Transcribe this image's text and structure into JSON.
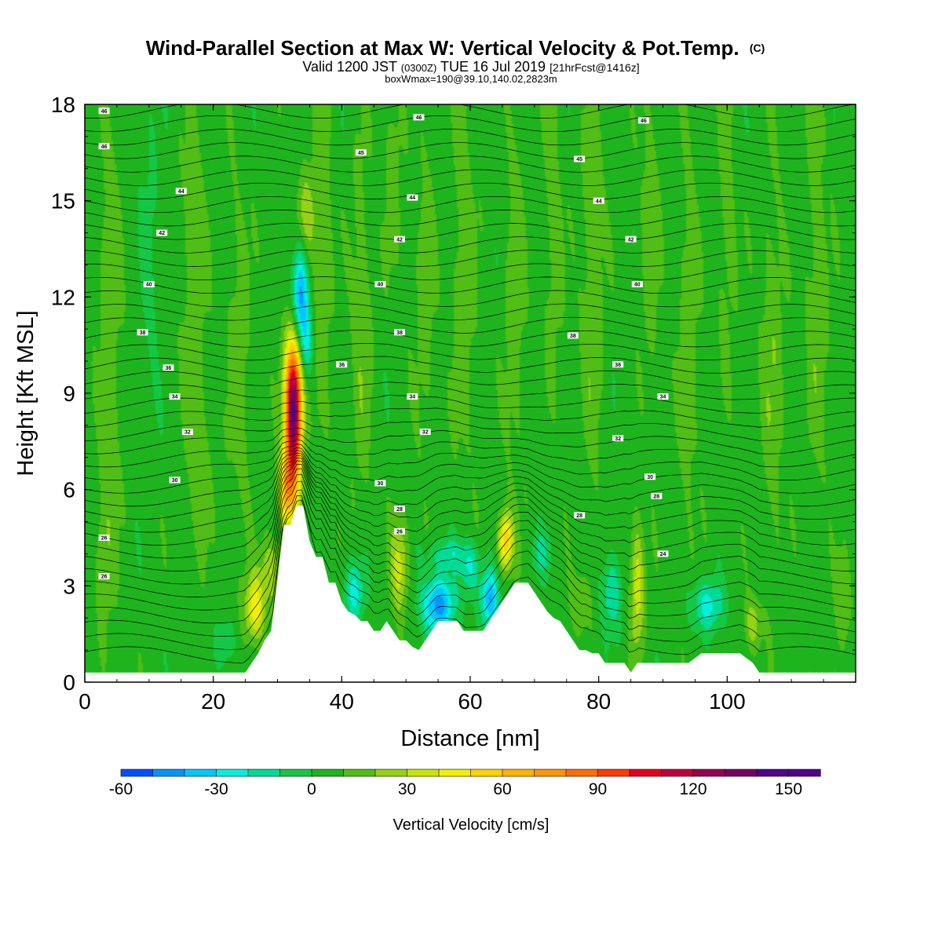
{
  "chart_data": {
    "type": "heatmap",
    "title": "Wind-Parallel Section at Max W: Vertical Velocity & Pot.Temp.",
    "title_mark": "(C)",
    "subtitle_parts": [
      "Valid 1200 JST",
      "(0300Z)",
      "TUE 16 Jul 2019",
      "[21hrFcst@1416z]"
    ],
    "subtitle2": "boxWmax=190@39.10,140.02,2823m",
    "xlabel": "Distance [nm]",
    "ylabel": "Height [Kft MSL]",
    "xlim": [
      0,
      120
    ],
    "ylim": [
      0,
      18
    ],
    "x_ticks": [
      "0",
      "20",
      "40",
      "60",
      "80",
      "100"
    ],
    "x_tick_values": [
      0,
      20,
      40,
      60,
      80,
      100
    ],
    "y_ticks": [
      "0",
      "3",
      "6",
      "9",
      "12",
      "15",
      "18"
    ],
    "y_tick_values": [
      0,
      3,
      6,
      9,
      12,
      15,
      18
    ],
    "terrain": [
      [
        0,
        0.3
      ],
      [
        5,
        0.3
      ],
      [
        10,
        0.3
      ],
      [
        15,
        0.3
      ],
      [
        20,
        0.3
      ],
      [
        25,
        0.3
      ],
      [
        26,
        0.6
      ],
      [
        27,
        0.9
      ],
      [
        28,
        1.3
      ],
      [
        29,
        1.6
      ],
      [
        30,
        3.2
      ],
      [
        31,
        4.9
      ],
      [
        32,
        4.9
      ],
      [
        33,
        5.5
      ],
      [
        34,
        5.5
      ],
      [
        35,
        4.4
      ],
      [
        36,
        3.9
      ],
      [
        37,
        3.9
      ],
      [
        38,
        3.1
      ],
      [
        39,
        3.1
      ],
      [
        40,
        2.5
      ],
      [
        41,
        2.2
      ],
      [
        42,
        2.1
      ],
      [
        43,
        1.9
      ],
      [
        44,
        1.9
      ],
      [
        45,
        1.6
      ],
      [
        46,
        1.6
      ],
      [
        47,
        1.9
      ],
      [
        48,
        1.6
      ],
      [
        49,
        1.3
      ],
      [
        50,
        1.3
      ],
      [
        51,
        1.1
      ],
      [
        52,
        1.0
      ],
      [
        53,
        1.3
      ],
      [
        54,
        1.6
      ],
      [
        55,
        1.9
      ],
      [
        56,
        1.9
      ],
      [
        57,
        1.9
      ],
      [
        58,
        1.9
      ],
      [
        59,
        1.6
      ],
      [
        60,
        1.6
      ],
      [
        61,
        1.6
      ],
      [
        62,
        1.6
      ],
      [
        63,
        1.9
      ],
      [
        64,
        2.2
      ],
      [
        65,
        2.5
      ],
      [
        66,
        2.8
      ],
      [
        67,
        3.1
      ],
      [
        68,
        3.1
      ],
      [
        69,
        3.1
      ],
      [
        70,
        2.8
      ],
      [
        71,
        2.5
      ],
      [
        72,
        2.2
      ],
      [
        73,
        2.0
      ],
      [
        74,
        1.9
      ],
      [
        75,
        1.6
      ],
      [
        76,
        1.3
      ],
      [
        77,
        1.0
      ],
      [
        78,
        1.0
      ],
      [
        79,
        0.9
      ],
      [
        80,
        0.9
      ],
      [
        81,
        0.6
      ],
      [
        82,
        0.6
      ],
      [
        83,
        0.6
      ],
      [
        84,
        0.6
      ],
      [
        85,
        0.3
      ],
      [
        86,
        0.6
      ],
      [
        88,
        0.6
      ],
      [
        90,
        0.6
      ],
      [
        92,
        0.6
      ],
      [
        94,
        0.6
      ],
      [
        96,
        0.9
      ],
      [
        98,
        0.9
      ],
      [
        100,
        0.9
      ],
      [
        102,
        0.9
      ],
      [
        104,
        0.6
      ],
      [
        105,
        0.3
      ],
      [
        110,
        0.3
      ],
      [
        115,
        0.3
      ],
      [
        120,
        0.3
      ]
    ],
    "isentrope_labels": [
      {
        "x": 3,
        "y": 17.8,
        "t": "46"
      },
      {
        "x": 52,
        "y": 17.6,
        "t": "46"
      },
      {
        "x": 87,
        "y": 17.5,
        "t": "46"
      },
      {
        "x": 3,
        "y": 16.7,
        "t": "46"
      },
      {
        "x": 43,
        "y": 16.5,
        "t": "45"
      },
      {
        "x": 77,
        "y": 16.3,
        "t": "45"
      },
      {
        "x": 15,
        "y": 15.3,
        "t": "44"
      },
      {
        "x": 51,
        "y": 15.1,
        "t": "44"
      },
      {
        "x": 80,
        "y": 15.0,
        "t": "44"
      },
      {
        "x": 12,
        "y": 14.0,
        "t": "42"
      },
      {
        "x": 49,
        "y": 13.8,
        "t": "42"
      },
      {
        "x": 85,
        "y": 13.8,
        "t": "42"
      },
      {
        "x": 10,
        "y": 12.4,
        "t": "40"
      },
      {
        "x": 46,
        "y": 12.4,
        "t": "40"
      },
      {
        "x": 86,
        "y": 12.4,
        "t": "40"
      },
      {
        "x": 9,
        "y": 10.9,
        "t": "38"
      },
      {
        "x": 49,
        "y": 10.9,
        "t": "38"
      },
      {
        "x": 76,
        "y": 10.8,
        "t": "38"
      },
      {
        "x": 13,
        "y": 9.8,
        "t": "36"
      },
      {
        "x": 40,
        "y": 9.9,
        "t": "36"
      },
      {
        "x": 83,
        "y": 9.9,
        "t": "36"
      },
      {
        "x": 14,
        "y": 8.9,
        "t": "34"
      },
      {
        "x": 51,
        "y": 8.9,
        "t": "34"
      },
      {
        "x": 90,
        "y": 8.9,
        "t": "34"
      },
      {
        "x": 16,
        "y": 7.8,
        "t": "32"
      },
      {
        "x": 53,
        "y": 7.8,
        "t": "32"
      },
      {
        "x": 83,
        "y": 7.6,
        "t": "32"
      },
      {
        "x": 14,
        "y": 6.3,
        "t": "30"
      },
      {
        "x": 46,
        "y": 6.2,
        "t": "30"
      },
      {
        "x": 88,
        "y": 6.4,
        "t": "30"
      },
      {
        "x": 49,
        "y": 5.4,
        "t": "28"
      },
      {
        "x": 89,
        "y": 5.8,
        "t": "28"
      },
      {
        "x": 77,
        "y": 5.2,
        "t": "28"
      },
      {
        "x": 49,
        "y": 4.7,
        "t": "26"
      },
      {
        "x": 3,
        "y": 4.5,
        "t": "26"
      },
      {
        "x": 90,
        "y": 4.0,
        "t": "24"
      },
      {
        "x": 3,
        "y": 3.3,
        "t": "26"
      }
    ],
    "colorbar": {
      "label": "Vertical Velocity [cm/s]",
      "min": -60,
      "max": 160,
      "step": 10,
      "tick_labels": [
        "-60",
        "-30",
        "0",
        "30",
        "60",
        "90",
        "120",
        "150"
      ],
      "tick_values": [
        -60,
        -30,
        0,
        30,
        60,
        90,
        120,
        150
      ],
      "colors": [
        "#0000ff",
        "#0050ff",
        "#0096ff",
        "#00c8ff",
        "#00f0dc",
        "#00dc96",
        "#14c846",
        "#1eb41e",
        "#50be14",
        "#96d214",
        "#c8e600",
        "#f0f000",
        "#ffd200",
        "#ffb400",
        "#ff9600",
        "#ff6e00",
        "#ff3c00",
        "#e6001e",
        "#be003c",
        "#960050",
        "#780064",
        "#50008c"
      ]
    },
    "field_features": [
      {
        "x": 32.5,
        "y": 8.5,
        "sx": 1.3,
        "sy": 2.2,
        "w": 140
      },
      {
        "x": 31.5,
        "y": 6.0,
        "sx": 1.3,
        "sy": 1.2,
        "w": 55
      },
      {
        "x": 33.5,
        "y": 12.0,
        "sx": 1.2,
        "sy": 1.6,
        "w": -55
      },
      {
        "x": 34.5,
        "y": 14.5,
        "sx": 1.4,
        "sy": 1.4,
        "w": 22
      },
      {
        "x": 34.5,
        "y": 10.5,
        "sx": 1.0,
        "sy": 1.0,
        "w": -25
      },
      {
        "x": 26.5,
        "y": 2.3,
        "sx": 1.5,
        "sy": 1.0,
        "w": 42
      },
      {
        "x": 29.0,
        "y": 3.5,
        "sx": 1.6,
        "sy": 1.0,
        "w": 25
      },
      {
        "x": 22.0,
        "y": 1.2,
        "sx": 1.5,
        "sy": 0.8,
        "w": -15
      },
      {
        "x": 65.5,
        "y": 4.4,
        "sx": 1.1,
        "sy": 0.9,
        "w": 55
      },
      {
        "x": 63.0,
        "y": 2.6,
        "sx": 1.4,
        "sy": 0.9,
        "w": -45
      },
      {
        "x": 55.0,
        "y": 2.4,
        "sx": 2.6,
        "sy": 0.9,
        "w": -50
      },
      {
        "x": 56.5,
        "y": 4.0,
        "sx": 3.5,
        "sy": 0.5,
        "w": -20
      },
      {
        "x": 49.0,
        "y": 3.6,
        "sx": 1.4,
        "sy": 1.5,
        "w": 30
      },
      {
        "x": 42.0,
        "y": 2.8,
        "sx": 1.6,
        "sy": 1.0,
        "w": -30
      },
      {
        "x": 60.0,
        "y": 3.5,
        "sx": 1.5,
        "sy": 0.8,
        "w": -25
      },
      {
        "x": 71.0,
        "y": 4.0,
        "sx": 1.5,
        "sy": 0.7,
        "w": -18
      },
      {
        "x": 86.0,
        "y": 3.0,
        "sx": 1.1,
        "sy": 2.0,
        "w": 32
      },
      {
        "x": 82.0,
        "y": 2.8,
        "sx": 1.5,
        "sy": 1.2,
        "w": -25
      },
      {
        "x": 97.0,
        "y": 2.4,
        "sx": 2.5,
        "sy": 0.8,
        "w": -30
      },
      {
        "x": 104.0,
        "y": 1.8,
        "sx": 1.3,
        "sy": 0.8,
        "w": 22
      },
      {
        "x": 77.0,
        "y": 2.5,
        "sx": 1.5,
        "sy": 0.9,
        "w": 15
      },
      {
        "x": 118.0,
        "y": 2.5,
        "sx": 1.2,
        "sy": 1.5,
        "w": 15
      },
      {
        "x": 3.0,
        "y": 4.0,
        "sx": 1.5,
        "sy": 2.5,
        "w": 12
      },
      {
        "x": 18.0,
        "y": 6.0,
        "sx": 1.5,
        "sy": 2.0,
        "w": 10
      }
    ],
    "streaks": [
      {
        "x": 4,
        "y": 12,
        "sx": 1.8,
        "sy": 7,
        "w": 12
      },
      {
        "x": 10,
        "y": 13,
        "sx": 1.5,
        "sy": 6,
        "w": -8
      },
      {
        "x": 17,
        "y": 12,
        "sx": 2,
        "sy": 6,
        "w": 12
      },
      {
        "x": 24,
        "y": 10,
        "sx": 1.7,
        "sy": 6,
        "w": 11
      },
      {
        "x": 37,
        "y": 14,
        "sx": 1.5,
        "sy": 5,
        "w": 14
      },
      {
        "x": 43,
        "y": 11,
        "sx": 1.6,
        "sy": 6,
        "w": 12
      },
      {
        "x": 48,
        "y": 16,
        "sx": 1.4,
        "sy": 3,
        "w": 11
      },
      {
        "x": 53,
        "y": 12,
        "sx": 1.6,
        "sy": 5,
        "w": 11
      },
      {
        "x": 59,
        "y": 13,
        "sx": 1.8,
        "sy": 6,
        "w": 13
      },
      {
        "x": 67,
        "y": 12,
        "sx": 1.6,
        "sy": 6,
        "w": 12
      },
      {
        "x": 73,
        "y": 14,
        "sx": 1.5,
        "sy": 5,
        "w": 11
      },
      {
        "x": 79,
        "y": 12,
        "sx": 1.8,
        "sy": 6,
        "w": 13
      },
      {
        "x": 88,
        "y": 14,
        "sx": 1.5,
        "sy": 5,
        "w": 11
      },
      {
        "x": 94,
        "y": 11,
        "sx": 1.6,
        "sy": 6,
        "w": 12
      },
      {
        "x": 100,
        "y": 14,
        "sx": 1.6,
        "sy": 4,
        "w": 11
      },
      {
        "x": 107,
        "y": 10,
        "sx": 1.8,
        "sy": 6,
        "w": 13
      },
      {
        "x": 114,
        "y": 12,
        "sx": 1.8,
        "sy": 6,
        "w": 12
      }
    ]
  }
}
